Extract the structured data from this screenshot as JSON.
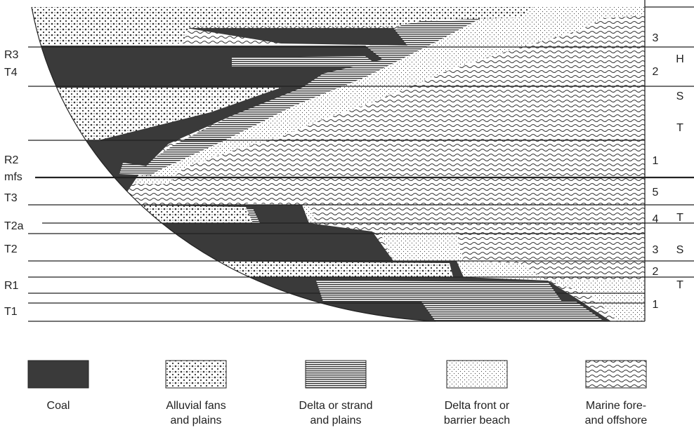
{
  "left_labels": [
    "R3",
    "T4",
    "R2",
    "mfs",
    "T3",
    "T2a",
    "T2",
    "R1",
    "T1"
  ],
  "right_numbers": [
    "3",
    "2",
    "1",
    "5",
    "4",
    "3",
    "2",
    "1"
  ],
  "systems_tracts": [
    "H",
    "S",
    "T",
    "T",
    "S",
    "T"
  ],
  "legend": [
    {
      "lines": [
        "Coal"
      ]
    },
    {
      "lines": [
        "Alluvial fans",
        "and plains"
      ]
    },
    {
      "lines": [
        "Delta or strand",
        "and plains"
      ]
    },
    {
      "lines": [
        "Delta front or",
        "barrier beach"
      ]
    },
    {
      "lines": [
        "Marine fore-",
        "and offshore"
      ]
    }
  ]
}
